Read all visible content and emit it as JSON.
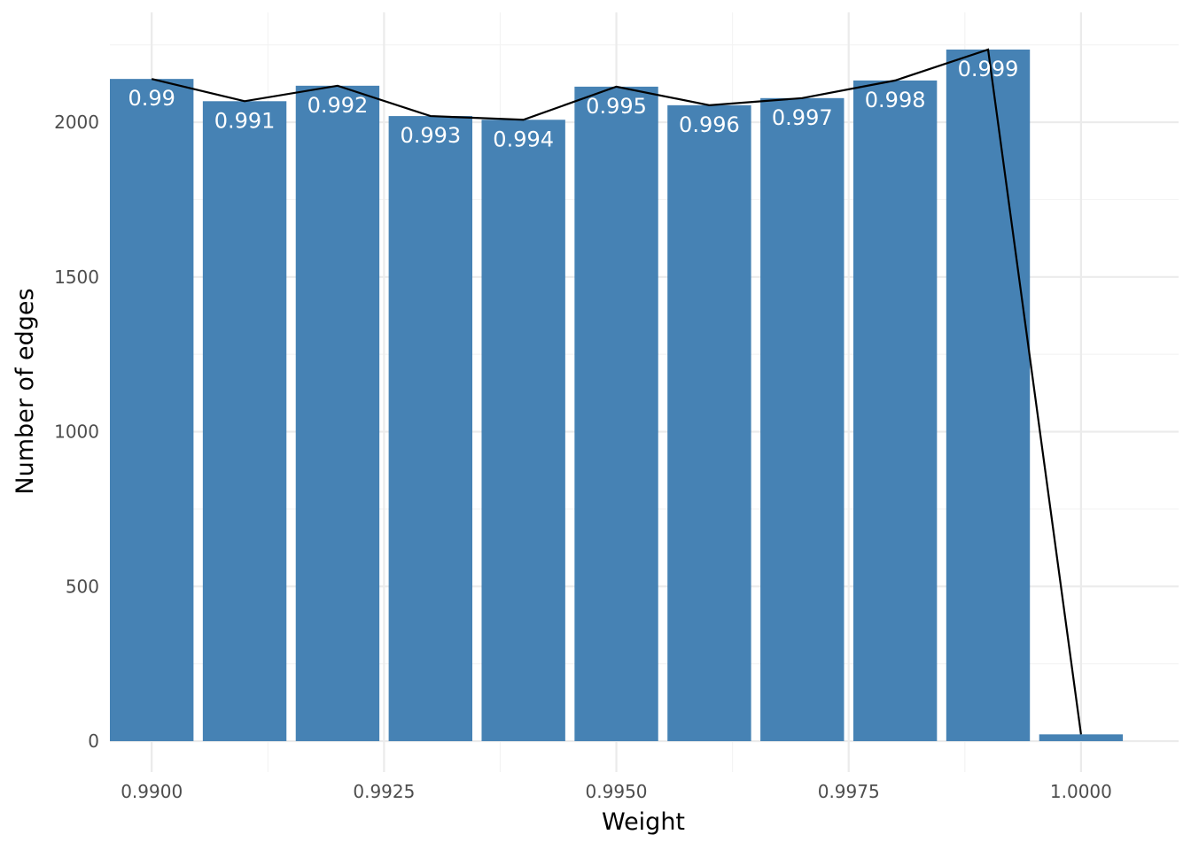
{
  "chart_data": {
    "type": "bar",
    "xlabel": "Weight",
    "ylabel": "Number of edges",
    "xlim": [
      0.98955,
      1.00105
    ],
    "ylim": [
      -100,
      2355
    ],
    "x_ticks": [
      0.99,
      0.9925,
      0.995,
      0.9975,
      1.0
    ],
    "x_tick_labels": [
      "0.9900",
      "0.9925",
      "0.9950",
      "0.9975",
      "1.0000"
    ],
    "x_minor_ticks": [
      0.99125,
      0.99375,
      0.99625,
      0.99875
    ],
    "y_ticks": [
      0,
      500,
      1000,
      1500,
      2000
    ],
    "y_tick_labels": [
      "0",
      "500",
      "1000",
      "1500",
      "2000"
    ],
    "y_minor_ticks": [
      250,
      750,
      1250,
      1750,
      2250
    ],
    "bar_width": 0.0009,
    "grid": true,
    "bar_color": "#4682b4",
    "line_color": "#000000",
    "x": [
      0.99,
      0.991,
      0.992,
      0.993,
      0.994,
      0.995,
      0.996,
      0.997,
      0.998,
      0.999,
      1.0
    ],
    "values": [
      2140,
      2068,
      2118,
      2020,
      2008,
      2115,
      2055,
      2078,
      2135,
      2235,
      22
    ],
    "bar_labels": [
      "0.99",
      "0.991",
      "0.992",
      "0.993",
      "0.994",
      "0.995",
      "0.996",
      "0.997",
      "0.998",
      "0.999",
      ""
    ]
  }
}
